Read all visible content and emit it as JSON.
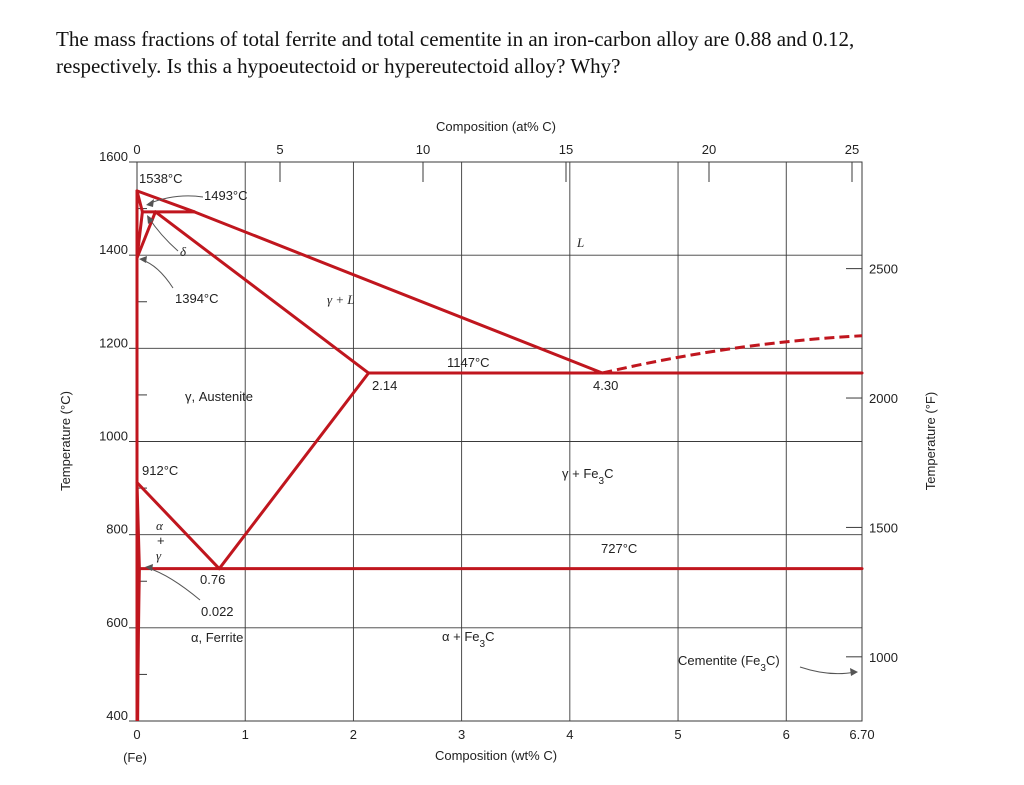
{
  "question": {
    "line1": "The mass fractions of total ferrite and total cementite in an iron-carbon alloy are 0.88 and 0.12,",
    "line2": "respectively. Is this a hypoeutectoid or hypereutectoid alloy? Why?"
  },
  "chart_data": {
    "type": "diagram",
    "x_bottom": {
      "label": "Composition (wt% C)",
      "ticks": [
        "0",
        "1",
        "2",
        "3",
        "4",
        "5",
        "6",
        "6.70"
      ],
      "sub_label": "(Fe)",
      "range": [
        0,
        6.7
      ]
    },
    "x_top": {
      "label": "Composition (at% C)",
      "ticks": [
        "0",
        "5",
        "10",
        "15",
        "20",
        "25"
      ]
    },
    "y_left": {
      "label": "Temperature (°C)",
      "ticks": [
        "400",
        "600",
        "800",
        "1000",
        "1200",
        "1400",
        "1600"
      ],
      "range": [
        400,
        1600
      ]
    },
    "y_right": {
      "label": "Temperature (°F)",
      "ticks": [
        "1000",
        "1500",
        "2000",
        "2500"
      ]
    },
    "points": {
      "melt_fe": {
        "label": "1538°C",
        "wt": 0,
        "t": 1538
      },
      "peritectic": {
        "label": "1493°C",
        "wt": 0.17,
        "t": 1493
      },
      "delta_gamma": {
        "label": "1394°C",
        "wt": 0,
        "t": 1394
      },
      "alpha_gamma": {
        "label": "912°C",
        "wt": 0,
        "t": 912
      },
      "eutectic": {
        "label": "1147°C",
        "wt": 4.3,
        "t": 1147
      },
      "eutectoid": {
        "label": "727°C",
        "wt": 0.76,
        "t": 727
      }
    },
    "compositions": {
      "gamma_max": {
        "label": "2.14",
        "wt": 2.14
      },
      "eutectic_comp": {
        "label": "4.30",
        "wt": 4.3
      },
      "eutectoid_comp": {
        "label": "0.76",
        "wt": 0.76
      },
      "alpha_max": {
        "label": "0.022",
        "wt": 0.022
      }
    },
    "regions": {
      "liquid": "L",
      "gamma_liquid": "γ + L",
      "delta": "δ",
      "austenite": "γ, Austenite",
      "alpha_gamma_top": "α",
      "alpha_gamma_plus": "+",
      "alpha_gamma_bottom": "γ",
      "gamma_cementite": "γ + Fe3C",
      "alpha_cementite": "α + Fe3C",
      "ferrite": "α, Ferrite",
      "cementite": "Cementite (Fe3C)"
    },
    "colors": {
      "phase_lines": "#c0161e",
      "grid": "#3a3a3a"
    }
  }
}
